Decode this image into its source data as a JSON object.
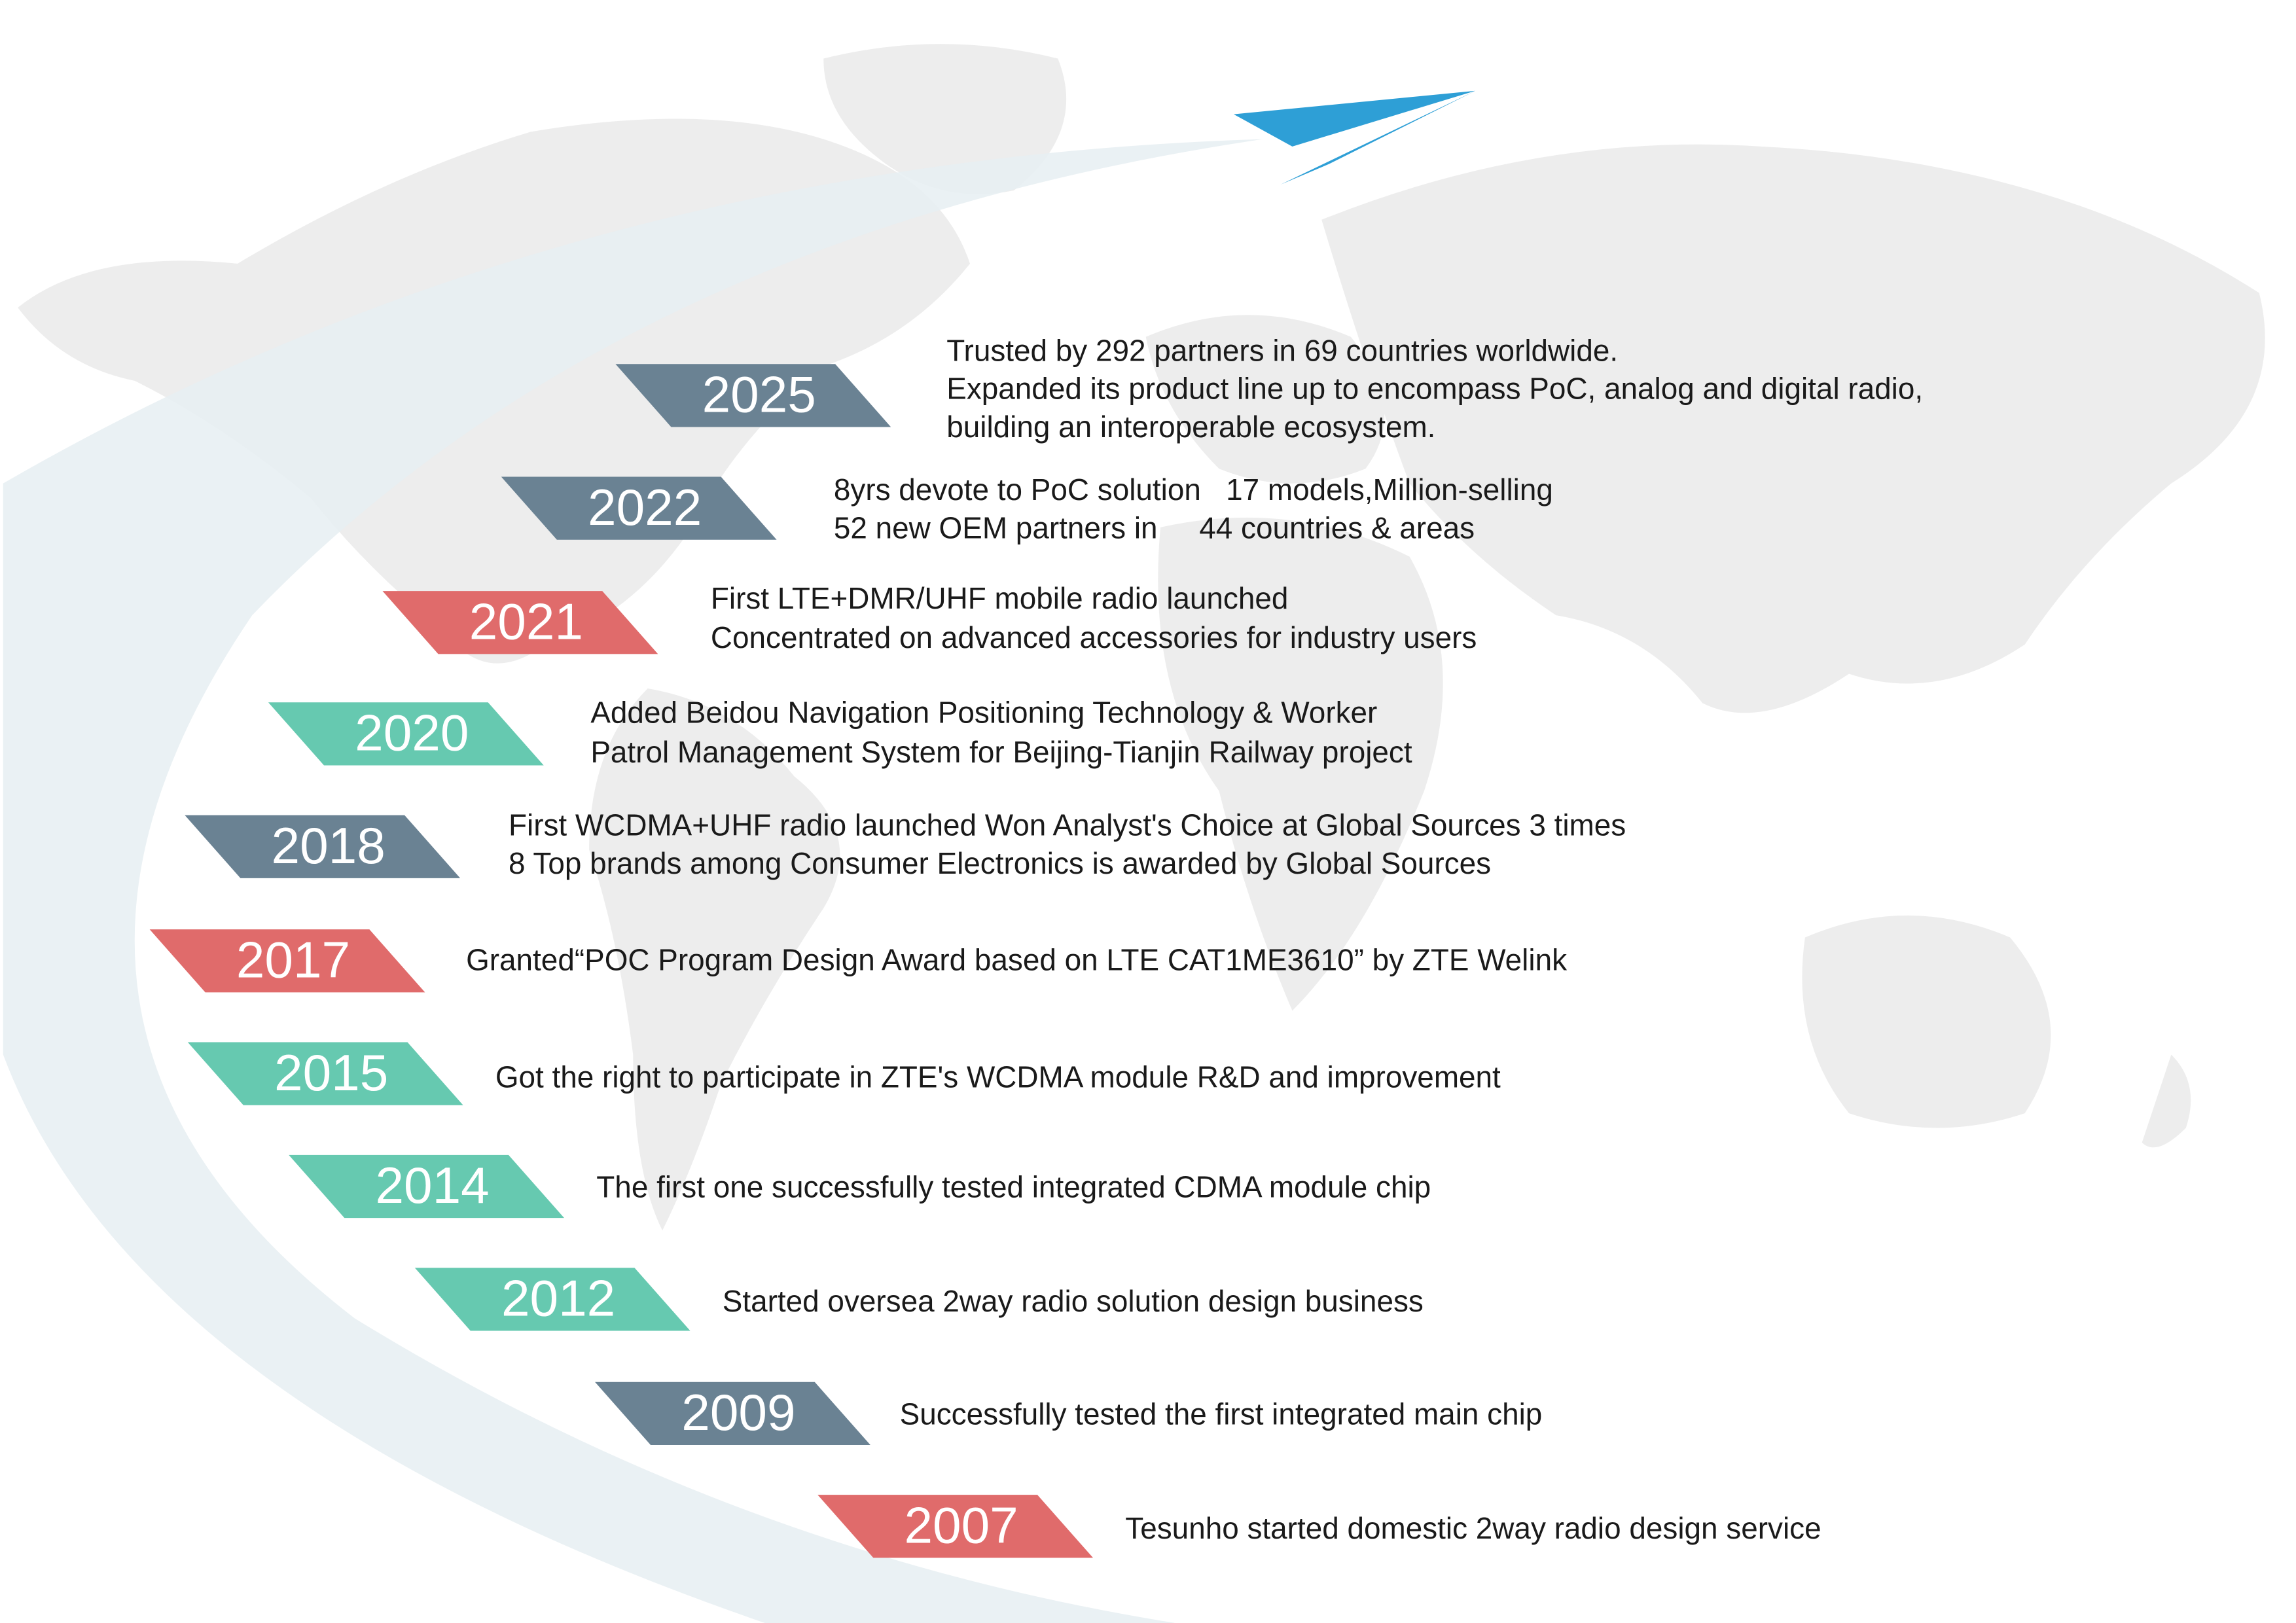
{
  "events": [
    {
      "year": "2025",
      "color": "#6a8293",
      "lines": [
        "Trusted by 292 partners in 69 countries worldwide.",
        "Expanded its product line up to encompass PoC, analog and digital radio,",
        "building an interoperable ecosystem."
      ]
    },
    {
      "year": "2022",
      "color": "#6a8293",
      "lines": [
        "8yrs devote to PoC solution   17 models,Million-selling",
        "52 new OEM partners in     44 countries & areas"
      ]
    },
    {
      "year": "2021",
      "color": "#e06b6b",
      "lines": [
        "First LTE+DMR/UHF mobile radio launched",
        "Concentrated on advanced accessories for industry users"
      ]
    },
    {
      "year": "2020",
      "color": "#66c9b0",
      "lines": [
        "Added Beidou Navigation Positioning Technology & Worker",
        "Patrol Management System for Beijing-Tianjin Railway project"
      ]
    },
    {
      "year": "2018",
      "color": "#6a8293",
      "lines": [
        "First WCDMA+UHF radio launched Won Analyst's Choice at Global Sources 3 times",
        "8 Top brands among Consumer Electronics is awarded by Global Sources"
      ]
    },
    {
      "year": "2017",
      "color": "#e06b6b",
      "lines": [
        "Granted“POC Program Design Award based on LTE CAT1ME3610” by ZTE Welink"
      ]
    },
    {
      "year": "2015",
      "color": "#66c9b0",
      "lines": [
        "Got the right to participate in ZTE's WCDMA module R&D and improvement"
      ]
    },
    {
      "year": "2014",
      "color": "#66c9b0",
      "lines": [
        "The first one successfully tested integrated CDMA module chip"
      ]
    },
    {
      "year": "2012",
      "color": "#66c9b0",
      "lines": [
        "Started oversea 2way radio solution design business"
      ]
    },
    {
      "year": "2009",
      "color": "#6a8293",
      "lines": [
        "Successfully tested the first integrated main chip"
      ]
    },
    {
      "year": "2007",
      "color": "#e06b6b",
      "lines": [
        "Tesunho started domestic 2way radio design service"
      ]
    }
  ]
}
